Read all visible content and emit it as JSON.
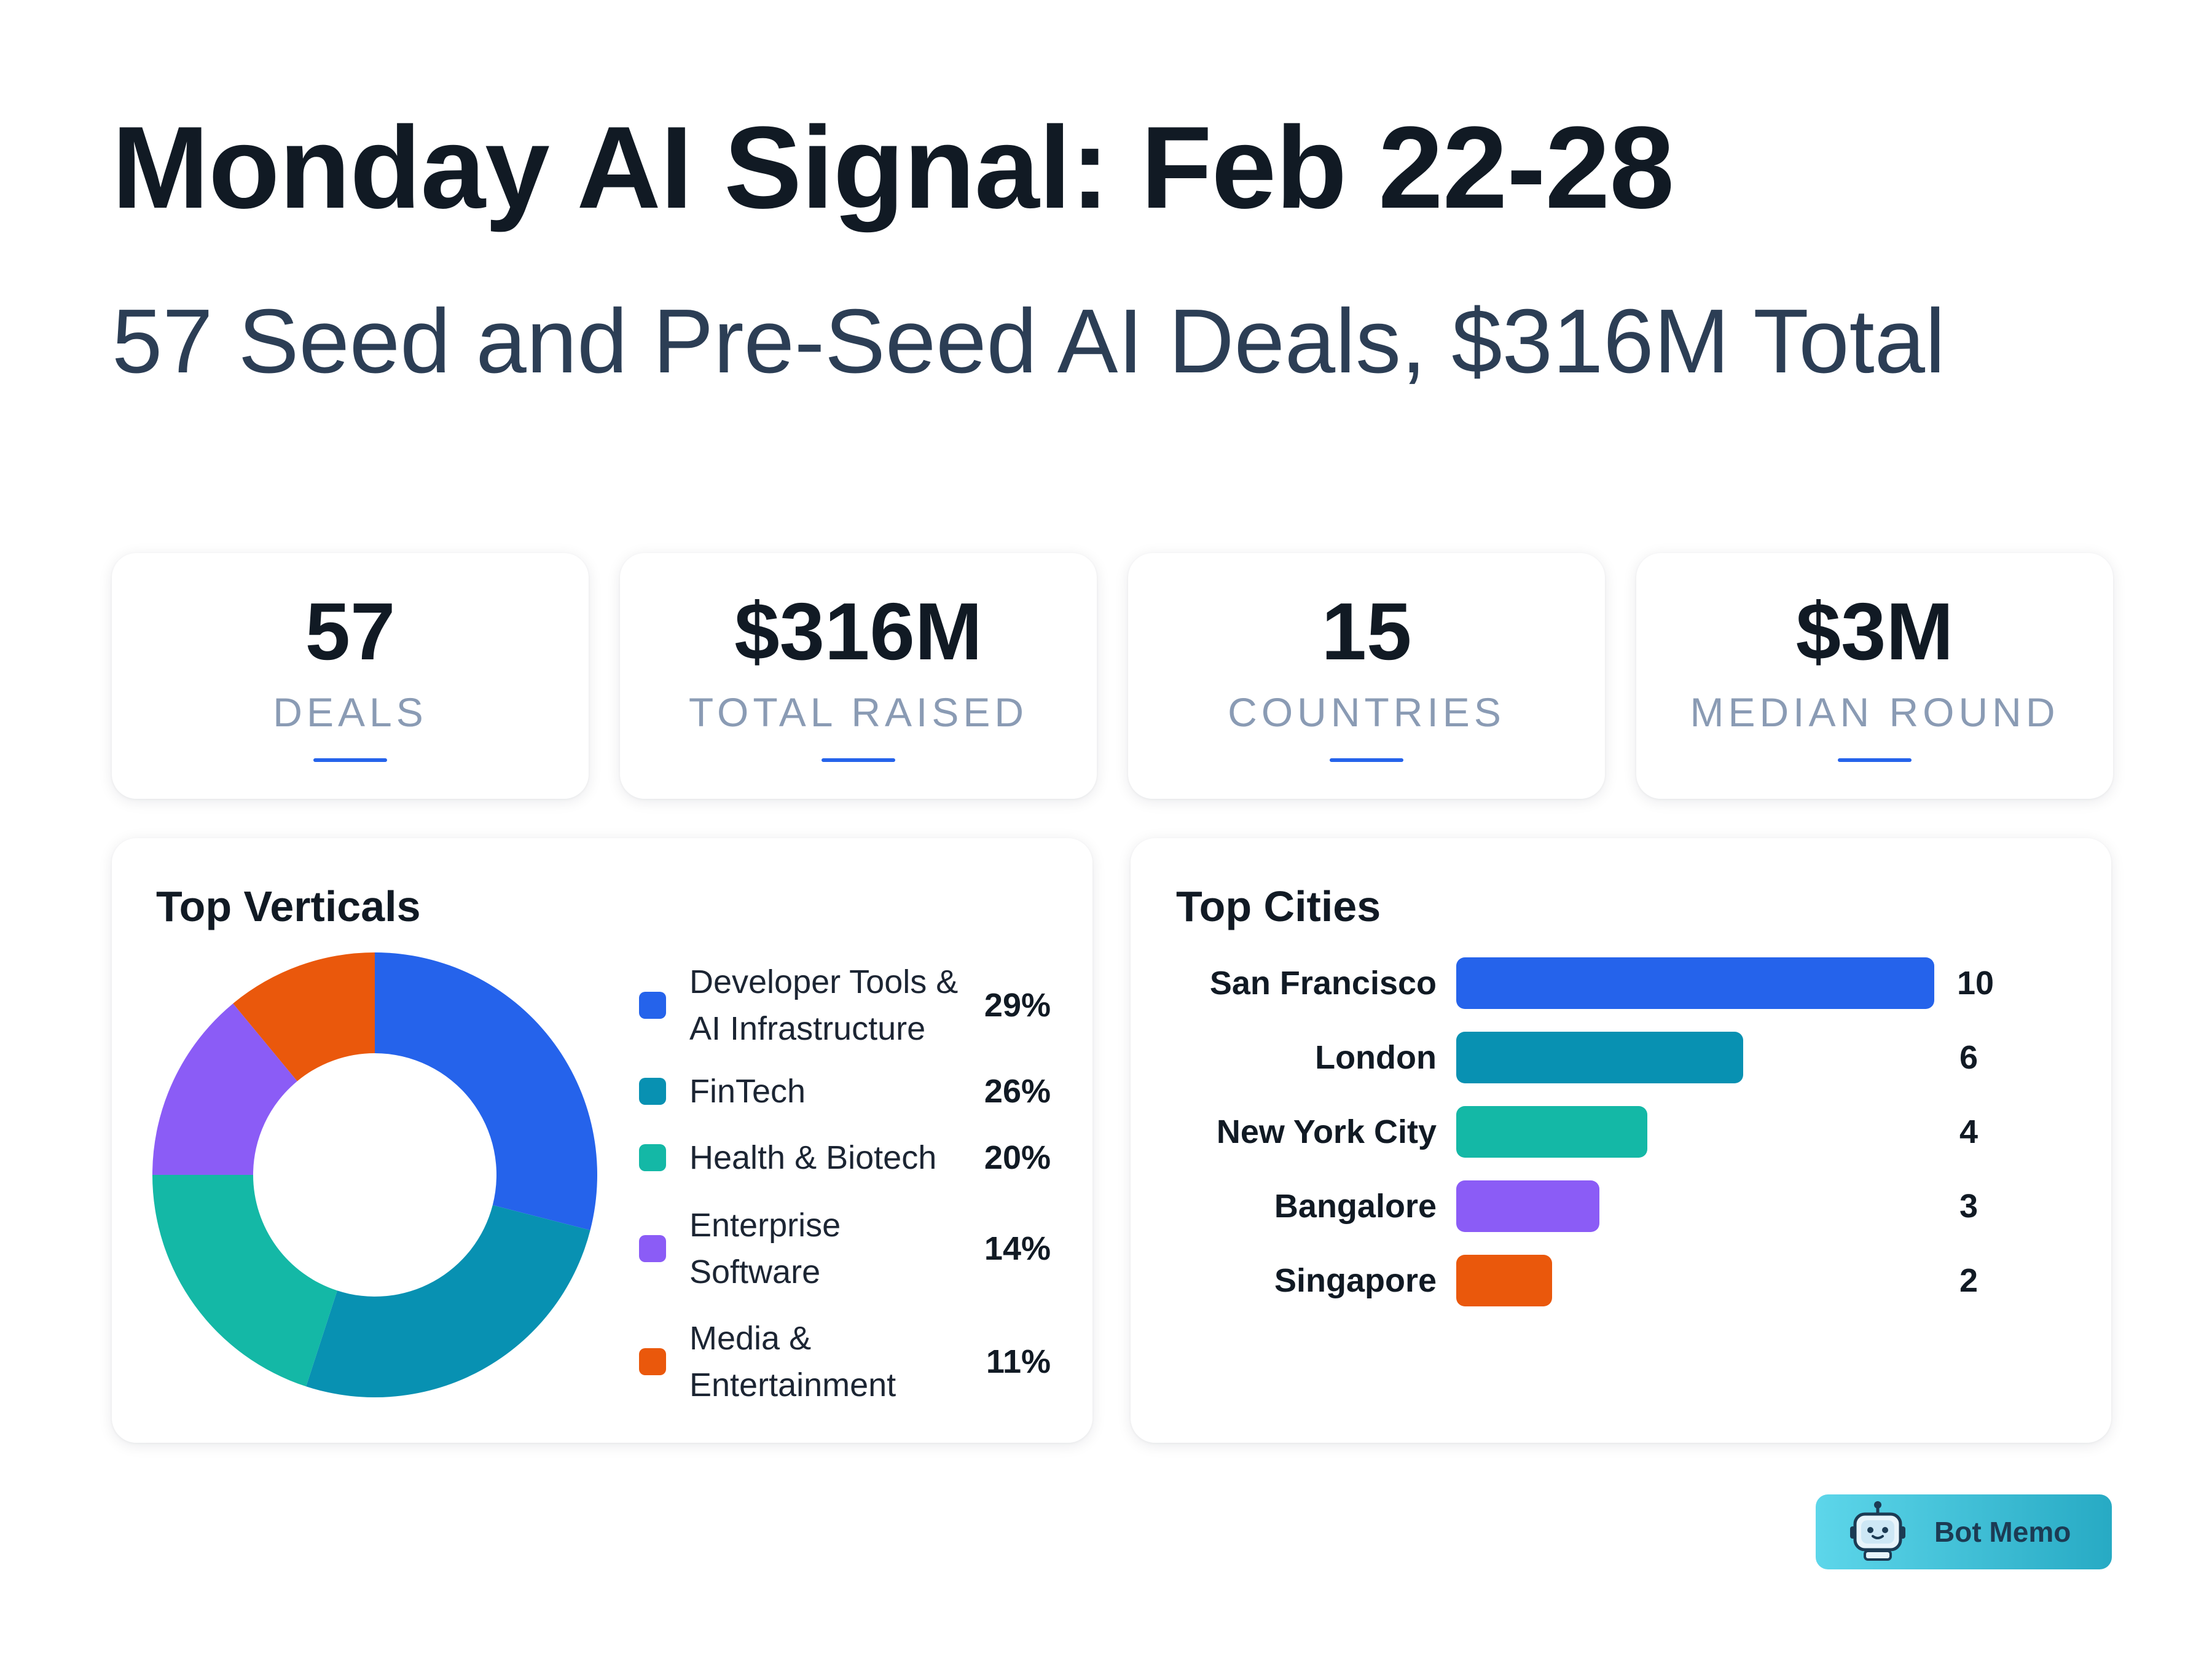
{
  "header": {
    "title": "Monday AI Signal: Feb 22-28",
    "subtitle": "57 Seed and Pre-Seed AI Deals, $316M Total"
  },
  "stats": [
    {
      "value": "57",
      "label": "DEALS"
    },
    {
      "value": "$316M",
      "label": "TOTAL RAISED"
    },
    {
      "value": "15",
      "label": "COUNTRIES"
    },
    {
      "value": "$3M",
      "label": "MEDIAN ROUND"
    }
  ],
  "colors": {
    "accent": "#2563eb",
    "verticals": [
      "#2563eb",
      "#0891b2",
      "#14b8a6",
      "#8b5cf6",
      "#ea580c"
    ]
  },
  "brand": {
    "name": "Bot Memo",
    "icon": "robot-icon"
  },
  "chart_data": [
    {
      "type": "pie",
      "variant": "donut",
      "title": "Top Verticals",
      "legend_placement": "right",
      "categories": [
        "Developer Tools & AI Infrastructure",
        "FinTech",
        "Health & Biotech",
        "Enterprise Software",
        "Media & Entertainment"
      ],
      "legend_lines": [
        [
          "Developer Tools &",
          "AI Infrastructure"
        ],
        [
          "FinTech"
        ],
        [
          "Health & Biotech"
        ],
        [
          "Enterprise",
          "Software"
        ],
        [
          "Media &",
          "Entertainment"
        ]
      ],
      "values": [
        29,
        26,
        20,
        14,
        11
      ],
      "labels": [
        "29%",
        "26%",
        "20%",
        "14%",
        "11%"
      ]
    },
    {
      "type": "bar",
      "orientation": "horizontal",
      "title": "Top Cities",
      "categories": [
        "San Francisco",
        "London",
        "New York City",
        "Bangalore",
        "Singapore"
      ],
      "values": [
        10,
        6,
        4,
        3,
        2
      ],
      "colors": [
        "#2563eb",
        "#0891b2",
        "#14b8a6",
        "#8b5cf6",
        "#ea580c"
      ],
      "xlim": [
        0,
        10
      ],
      "grid": false
    }
  ]
}
